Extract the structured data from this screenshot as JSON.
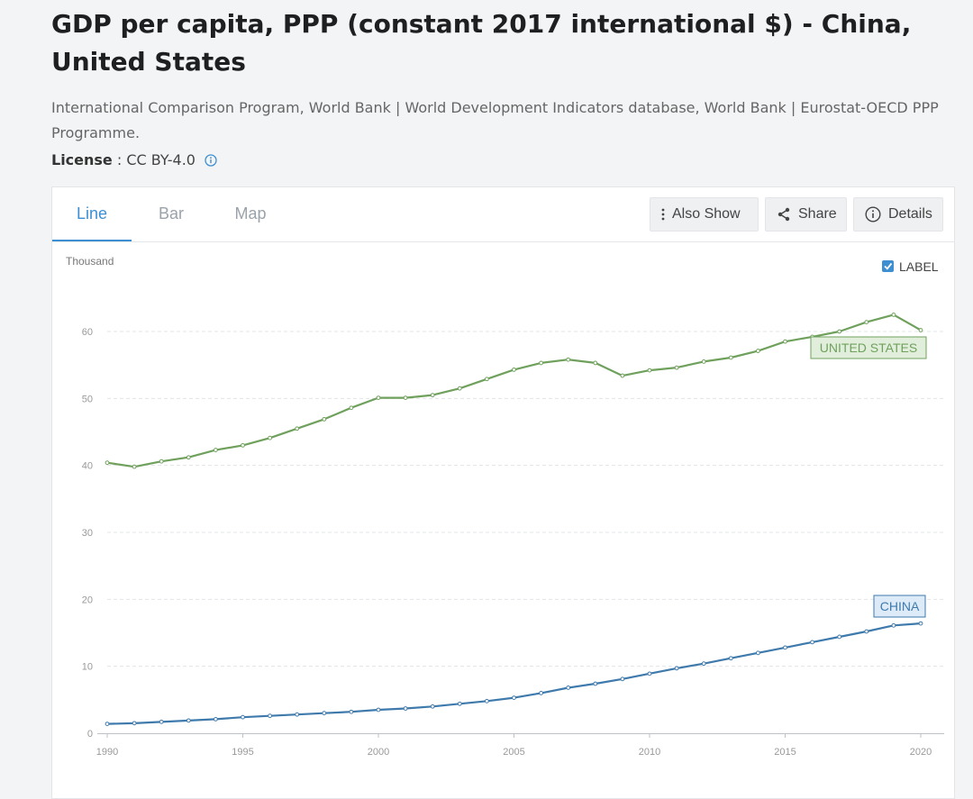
{
  "header": {
    "title": "GDP per capita, PPP (constant 2017 international $) - China, United States",
    "source": "International Comparison Program, World Bank | World Development Indicators database, World Bank | Eurostat-OECD PPP Programme.",
    "license_label": "License",
    "license_value": " : CC BY-4.0"
  },
  "tabs": [
    {
      "label": "Line",
      "active": true
    },
    {
      "label": "Bar",
      "active": false
    },
    {
      "label": "Map",
      "active": false
    }
  ],
  "toolbar": {
    "also_show": "Also Show",
    "share": "Share",
    "details": "Details"
  },
  "chart_controls": {
    "label_toggle": "LABEL",
    "label_checked": true
  },
  "colors": {
    "united_states": "#6fa15c",
    "china": "#3f7aac",
    "accent": "#3d8fd1"
  },
  "chart_data": {
    "type": "line",
    "ylabel": "Thousand",
    "ylim": [
      0,
      60
    ],
    "yticks": [
      "0",
      "10",
      "20",
      "30",
      "40",
      "50",
      "60"
    ],
    "xlim": [
      1990,
      2020
    ],
    "xticks": [
      "1990",
      "1995",
      "2000",
      "2005",
      "2010",
      "2015",
      "2020"
    ],
    "grid": true,
    "x": [
      1990,
      1991,
      1992,
      1993,
      1994,
      1995,
      1996,
      1997,
      1998,
      1999,
      2000,
      2001,
      2002,
      2003,
      2004,
      2005,
      2006,
      2007,
      2008,
      2009,
      2010,
      2011,
      2012,
      2013,
      2014,
      2015,
      2016,
      2017,
      2018,
      2019,
      2020
    ],
    "series": [
      {
        "name": "UNITED STATES",
        "values": [
          40.4,
          39.8,
          40.6,
          41.2,
          42.3,
          43.0,
          44.1,
          45.5,
          46.9,
          48.6,
          50.1,
          50.1,
          50.5,
          51.5,
          52.9,
          54.3,
          55.3,
          55.8,
          55.3,
          53.4,
          54.2,
          54.6,
          55.5,
          56.1,
          57.1,
          58.5,
          59.2,
          60.0,
          61.4,
          62.5,
          60.2
        ]
      },
      {
        "name": "CHINA",
        "values": [
          1.4,
          1.5,
          1.7,
          1.9,
          2.1,
          2.4,
          2.6,
          2.8,
          3.0,
          3.2,
          3.5,
          3.7,
          4.0,
          4.4,
          4.8,
          5.3,
          6.0,
          6.8,
          7.4,
          8.1,
          8.9,
          9.7,
          10.4,
          11.2,
          12.0,
          12.8,
          13.6,
          14.4,
          15.2,
          16.1,
          16.4
        ]
      }
    ]
  }
}
